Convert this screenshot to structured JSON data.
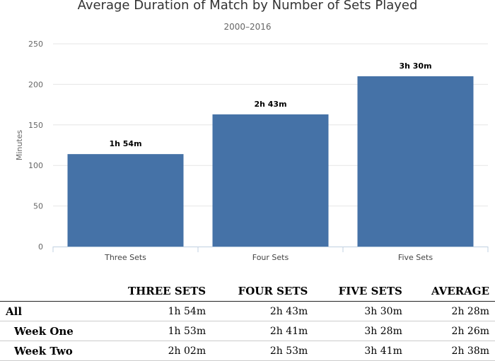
{
  "chart_data": {
    "type": "bar",
    "title": "Average Duration of Match by Number of Sets Played",
    "subtitle": "2000–2016",
    "xlabel": "",
    "ylabel": "Minutes",
    "ylim": [
      0,
      250
    ],
    "yticks": [
      0,
      50,
      100,
      150,
      200,
      250
    ],
    "grid": true,
    "color": "#4572a7",
    "categories": [
      "Three Sets",
      "Four Sets",
      "Five Sets"
    ],
    "values": [
      114,
      163,
      210
    ],
    "data_labels": [
      "1h 54m",
      "2h 43m",
      "3h 30m"
    ]
  },
  "table": {
    "headers": [
      "",
      "THREE SETS",
      "FOUR SETS",
      "FIVE SETS",
      "AVERAGE"
    ],
    "rows": [
      {
        "label": "All",
        "indent": false,
        "cells": [
          "1h 54m",
          "2h 43m",
          "3h 30m",
          "2h 28m"
        ]
      },
      {
        "label": "Week One",
        "indent": true,
        "cells": [
          "1h 53m",
          "2h 41m",
          "3h 28m",
          "2h 26m"
        ]
      },
      {
        "label": "Week Two",
        "indent": true,
        "cells": [
          "2h 02m",
          "2h 53m",
          "3h 41m",
          "2h 38m"
        ]
      }
    ]
  }
}
